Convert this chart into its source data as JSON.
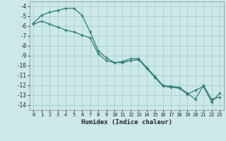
{
  "xlabel": "Humidex (Indice chaleur)",
  "line_color": "#2e7d72",
  "background_color": "#cce8e8",
  "grid_color": "#aacece",
  "ylim": [
    -14.5,
    -3.5
  ],
  "xlim": [
    -0.5,
    23.5
  ],
  "yticks": [
    -4,
    -5,
    -6,
    -7,
    -8,
    -9,
    -10,
    -11,
    -12,
    -13,
    -14
  ],
  "xticks": [
    0,
    1,
    2,
    3,
    4,
    5,
    6,
    7,
    8,
    9,
    10,
    11,
    12,
    13,
    14,
    15,
    16,
    17,
    18,
    19,
    20,
    21,
    22,
    23
  ],
  "series1_x": [
    0,
    1,
    2,
    3,
    4,
    5,
    6,
    7,
    8,
    9,
    10,
    11,
    12,
    13,
    14,
    15,
    16,
    17,
    18,
    19,
    20,
    21,
    22,
    23
  ],
  "series1_y": [
    -5.7,
    -4.9,
    -4.6,
    -4.4,
    -4.2,
    -4.2,
    -4.9,
    -6.6,
    -8.5,
    -9.2,
    -9.7,
    -9.6,
    -9.3,
    -9.3,
    -10.2,
    -11.1,
    -12.0,
    -12.1,
    -12.2,
    -12.8,
    -13.4,
    -12.0,
    -13.4,
    -13.2
  ],
  "series2_x": [
    0,
    1,
    2,
    3,
    4,
    5,
    6,
    7,
    8,
    9,
    10,
    11,
    12,
    13,
    14,
    15,
    16,
    17,
    18,
    19,
    20,
    21,
    22,
    23
  ],
  "series2_y": [
    -5.8,
    -5.5,
    -5.8,
    -6.1,
    -6.4,
    -6.6,
    -6.9,
    -7.2,
    -8.8,
    -9.5,
    -9.7,
    -9.7,
    -9.5,
    -9.4,
    -10.3,
    -11.2,
    -12.1,
    -12.2,
    -12.3,
    -12.9,
    -12.5,
    -12.1,
    -13.7,
    -12.8
  ]
}
